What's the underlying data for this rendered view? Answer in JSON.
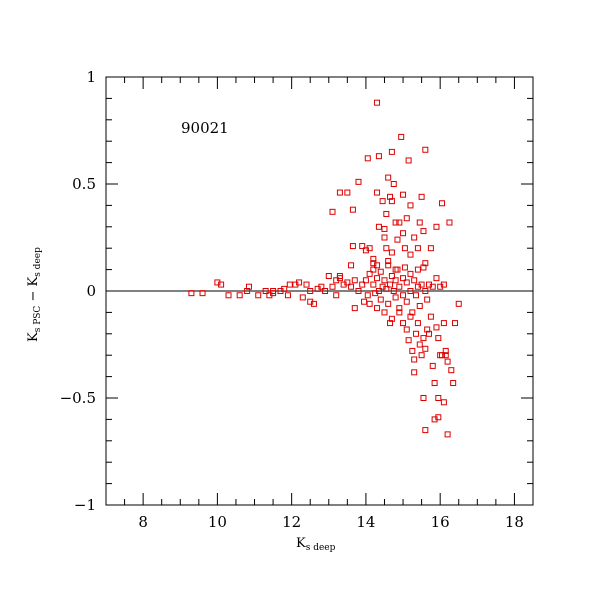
{
  "chart_data": {
    "type": "scatter",
    "title": "",
    "annotation": "90021",
    "xlabel": {
      "main": "K",
      "sub": "s deep"
    },
    "ylabel": {
      "main1": "K",
      "sub1": "s PSC",
      "dash": " − ",
      "main2": "K",
      "sub2": "s deep"
    },
    "xlim": [
      7,
      18.5
    ],
    "ylim": [
      -1,
      1
    ],
    "x_ticks": [
      {
        "value": 8,
        "label": "8"
      },
      {
        "value": 10,
        "label": "10"
      },
      {
        "value": 12,
        "label": "12"
      },
      {
        "value": 14,
        "label": "14"
      },
      {
        "value": 16,
        "label": "16"
      },
      {
        "value": 18,
        "label": "18"
      }
    ],
    "y_ticks": [
      {
        "value": -1,
        "label": "−1"
      },
      {
        "value": -0.5,
        "label": "−0.5"
      },
      {
        "value": 0,
        "label": "0"
      },
      {
        "value": 0.5,
        "label": "0.5"
      },
      {
        "value": 1,
        "label": "1"
      }
    ],
    "x_minor_step": 0.5,
    "y_minor_step": 0.1,
    "reference_line_y": 0,
    "grid": false,
    "marker": "open-square",
    "marker_color": "#dd0000",
    "points": [
      [
        9.3,
        -0.01
      ],
      [
        9.6,
        -0.01
      ],
      [
        10.0,
        0.04
      ],
      [
        10.1,
        0.03
      ],
      [
        10.3,
        -0.02
      ],
      [
        10.6,
        -0.02
      ],
      [
        10.8,
        0.0
      ],
      [
        10.85,
        0.02
      ],
      [
        11.1,
        -0.02
      ],
      [
        11.3,
        0.0
      ],
      [
        11.4,
        -0.02
      ],
      [
        11.5,
        -0.01
      ],
      [
        11.5,
        0.0
      ],
      [
        11.7,
        0.0
      ],
      [
        11.8,
        0.01
      ],
      [
        11.9,
        -0.02
      ],
      [
        11.95,
        0.03
      ],
      [
        12.1,
        0.03
      ],
      [
        12.2,
        0.04
      ],
      [
        12.3,
        -0.03
      ],
      [
        12.4,
        0.03
      ],
      [
        12.5,
        -0.05
      ],
      [
        12.5,
        0.0
      ],
      [
        12.6,
        -0.06
      ],
      [
        12.7,
        0.01
      ],
      [
        12.8,
        0.02
      ],
      [
        12.9,
        0.0
      ],
      [
        13.0,
        0.07
      ],
      [
        13.1,
        0.02
      ],
      [
        13.2,
        -0.02
      ],
      [
        13.2,
        0.05
      ],
      [
        13.3,
        0.07
      ],
      [
        13.4,
        0.03
      ],
      [
        13.5,
        0.04
      ],
      [
        13.6,
        0.02
      ],
      [
        13.7,
        0.05
      ],
      [
        13.7,
        -0.08
      ],
      [
        13.8,
        0.0
      ],
      [
        13.9,
        0.03
      ],
      [
        13.95,
        -0.05
      ],
      [
        14.0,
        0.05
      ],
      [
        14.05,
        -0.02
      ],
      [
        14.1,
        0.08
      ],
      [
        14.1,
        -0.06
      ],
      [
        14.2,
        0.1
      ],
      [
        14.2,
        0.03
      ],
      [
        14.25,
        -0.01
      ],
      [
        14.3,
        0.06
      ],
      [
        14.3,
        -0.08
      ],
      [
        14.35,
        0.0
      ],
      [
        14.4,
        0.09
      ],
      [
        14.4,
        -0.04
      ],
      [
        14.45,
        0.02
      ],
      [
        14.5,
        0.05
      ],
      [
        14.5,
        -0.1
      ],
      [
        14.55,
        0.01
      ],
      [
        14.6,
        0.12
      ],
      [
        14.6,
        -0.06
      ],
      [
        14.65,
        0.03
      ],
      [
        14.7,
        0.07
      ],
      [
        14.7,
        -0.13
      ],
      [
        14.75,
        0.0
      ],
      [
        14.8,
        0.05
      ],
      [
        14.8,
        -0.03
      ],
      [
        14.85,
        0.1
      ],
      [
        14.9,
        0.02
      ],
      [
        14.9,
        -0.08
      ],
      [
        15.0,
        0.06
      ],
      [
        15.0,
        -0.02
      ],
      [
        15.05,
        0.11
      ],
      [
        15.1,
        0.04
      ],
      [
        15.1,
        -0.05
      ],
      [
        15.2,
        0.08
      ],
      [
        15.2,
        0.0
      ],
      [
        15.25,
        -0.1
      ],
      [
        15.3,
        0.05
      ],
      [
        15.35,
        -0.02
      ],
      [
        15.4,
        0.1
      ],
      [
        15.4,
        0.02
      ],
      [
        15.45,
        -0.07
      ],
      [
        15.5,
        0.03
      ],
      [
        15.55,
        0.11
      ],
      [
        15.6,
        0.0
      ],
      [
        15.65,
        -0.04
      ],
      [
        15.7,
        0.03
      ],
      [
        15.8,
        0.02
      ],
      [
        16.0,
        0.02
      ],
      [
        16.1,
        0.03
      ],
      [
        16.5,
        -0.06
      ],
      [
        13.1,
        0.37
      ],
      [
        13.3,
        0.46
      ],
      [
        13.5,
        0.46
      ],
      [
        13.65,
        0.38
      ],
      [
        13.65,
        0.21
      ],
      [
        13.8,
        0.51
      ],
      [
        13.9,
        0.21
      ],
      [
        14.0,
        0.19
      ],
      [
        14.05,
        0.62
      ],
      [
        14.1,
        0.2
      ],
      [
        14.2,
        0.13
      ],
      [
        14.3,
        0.88
      ],
      [
        14.3,
        0.46
      ],
      [
        14.35,
        0.63
      ],
      [
        14.35,
        0.3
      ],
      [
        14.45,
        0.42
      ],
      [
        14.5,
        0.29
      ],
      [
        14.55,
        0.36
      ],
      [
        14.55,
        0.2
      ],
      [
        14.6,
        0.53
      ],
      [
        14.65,
        0.44
      ],
      [
        14.7,
        0.65
      ],
      [
        14.7,
        0.42
      ],
      [
        14.75,
        0.5
      ],
      [
        14.8,
        0.32
      ],
      [
        14.85,
        0.24
      ],
      [
        14.9,
        0.32
      ],
      [
        14.95,
        0.72
      ],
      [
        15.0,
        0.45
      ],
      [
        15.05,
        0.2
      ],
      [
        15.1,
        0.34
      ],
      [
        15.15,
        0.61
      ],
      [
        15.2,
        0.4
      ],
      [
        15.3,
        0.25
      ],
      [
        15.45,
        0.32
      ],
      [
        15.5,
        0.44
      ],
      [
        15.55,
        0.28
      ],
      [
        15.6,
        0.66
      ],
      [
        15.75,
        0.2
      ],
      [
        15.9,
        0.3
      ],
      [
        16.05,
        0.41
      ],
      [
        16.25,
        0.32
      ],
      [
        13.3,
        0.06
      ],
      [
        13.6,
        0.12
      ],
      [
        14.2,
        0.15
      ],
      [
        14.3,
        0.12
      ],
      [
        14.5,
        0.25
      ],
      [
        14.6,
        0.14
      ],
      [
        14.7,
        0.18
      ],
      [
        14.8,
        0.1
      ],
      [
        15.0,
        0.27
      ],
      [
        15.2,
        0.17
      ],
      [
        15.4,
        0.2
      ],
      [
        15.6,
        0.13
      ],
      [
        15.9,
        0.06
      ],
      [
        14.65,
        -0.15
      ],
      [
        14.9,
        -0.1
      ],
      [
        15.0,
        -0.15
      ],
      [
        15.1,
        -0.18
      ],
      [
        15.15,
        -0.23
      ],
      [
        15.2,
        -0.12
      ],
      [
        15.25,
        -0.28
      ],
      [
        15.3,
        -0.32
      ],
      [
        15.35,
        -0.2
      ],
      [
        15.4,
        -0.15
      ],
      [
        15.45,
        -0.25
      ],
      [
        15.5,
        -0.3
      ],
      [
        15.55,
        -0.22
      ],
      [
        15.6,
        -0.27
      ],
      [
        15.65,
        -0.18
      ],
      [
        15.7,
        -0.2
      ],
      [
        15.75,
        -0.12
      ],
      [
        15.8,
        -0.35
      ],
      [
        15.85,
        -0.43
      ],
      [
        15.9,
        -0.17
      ],
      [
        15.95,
        -0.22
      ],
      [
        16.0,
        -0.3
      ],
      [
        16.1,
        -0.15
      ],
      [
        16.15,
        -0.28
      ],
      [
        16.2,
        -0.33
      ],
      [
        16.3,
        -0.37
      ],
      [
        16.35,
        -0.43
      ],
      [
        16.4,
        -0.15
      ],
      [
        16.1,
        -0.52
      ],
      [
        15.95,
        -0.5
      ],
      [
        15.55,
        -0.5
      ],
      [
        15.95,
        -0.59
      ],
      [
        15.85,
        -0.6
      ],
      [
        15.6,
        -0.65
      ],
      [
        16.2,
        -0.67
      ],
      [
        15.3,
        -0.38
      ],
      [
        16.05,
        -0.3
      ],
      [
        16.15,
        -0.3
      ]
    ]
  }
}
